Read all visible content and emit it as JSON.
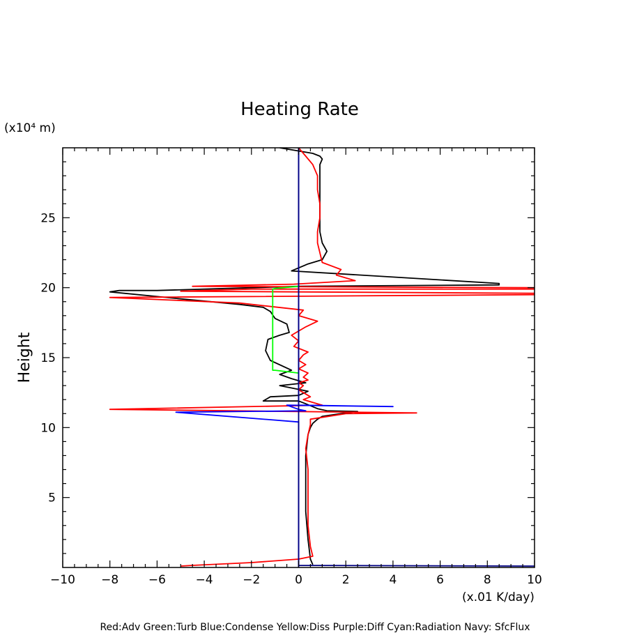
{
  "chart_data": {
    "type": "line",
    "title": "Heating Rate",
    "xlabel": "(x.01 K/day)",
    "ylabel": "Height",
    "y_unit": "(x10⁴ m)",
    "xlim": [
      -10,
      10
    ],
    "ylim": [
      0,
      30
    ],
    "xticks": [
      -10,
      -8,
      -6,
      -4,
      -2,
      0,
      2,
      4,
      6,
      8,
      10
    ],
    "yticks": [
      5,
      10,
      15,
      20,
      25
    ],
    "grid": false,
    "legend_text": "Red:Adv  Green:Turb  Blue:Condense  Yellow:Diss  Purple:Diff  Cyan:Radiation  Navy: SfcFlux",
    "series": [
      {
        "color": "#000000",
        "x": [
          0.6,
          0.5,
          0.4,
          0.3,
          0.3,
          0.3,
          0.4,
          0.5,
          0.6,
          0.8,
          1.0,
          1.8,
          2.5,
          1.2,
          0.8,
          0.3,
          0.0,
          -1.5,
          -1.2,
          0.0,
          0.4,
          -0.8,
          0.3,
          -0.3,
          -0.8,
          -0.3,
          -1.2,
          -1.4,
          -1.3,
          -0.8,
          -0.4,
          -0.5,
          -1.0,
          -1.2,
          -1.5,
          -2.5,
          -5.0,
          -8.0,
          -7.6,
          -6.0,
          -2.0,
          0.0,
          8.5,
          8.5,
          -0.3,
          0.4,
          1.0,
          1.2,
          1.0,
          0.9,
          0.9,
          0.9,
          0.9,
          0.9,
          0.9,
          0.9,
          1.0,
          0.9,
          0.6,
          -0.8
        ],
        "y": [
          0.2,
          0.6,
          2.0,
          4.0,
          6.0,
          8.0,
          9.5,
          10.0,
          10.3,
          10.6,
          10.8,
          11.0,
          11.15,
          11.2,
          11.35,
          11.7,
          11.9,
          11.9,
          12.2,
          12.3,
          12.6,
          13.0,
          13.2,
          13.5,
          13.8,
          14.1,
          14.8,
          15.5,
          16.3,
          16.6,
          16.8,
          17.4,
          17.8,
          18.3,
          18.6,
          18.8,
          19.2,
          19.7,
          19.8,
          19.8,
          20.0,
          20.1,
          20.2,
          20.3,
          21.2,
          21.7,
          22.0,
          22.6,
          23.2,
          24.0,
          25.0,
          26.0,
          27.0,
          27.8,
          28.5,
          28.8,
          29.2,
          29.4,
          29.6,
          30.0
        ]
      },
      {
        "color": "#ff0000",
        "x": [
          -5.0,
          -4.5,
          -2.0,
          0.0,
          0.6,
          0.5,
          0.4,
          0.4,
          0.4,
          0.3,
          0.4,
          0.5,
          0.5,
          2.0,
          5.0,
          -8.0,
          1.0,
          0.2,
          0.5,
          0.3,
          0.0,
          0.2,
          0.0,
          0.4,
          0.2,
          0.4,
          0.0,
          0.3,
          0.0,
          0.2,
          0.4,
          -0.2,
          0.0,
          -0.3,
          0.3,
          0.8,
          0.0,
          0.2,
          -2.5,
          -8.0,
          10.0,
          10.0,
          -5.0,
          -2.0,
          10.0,
          10.0,
          -4.5,
          -0.2,
          2.4,
          1.6,
          1.8,
          1.0,
          0.9,
          0.8,
          0.8,
          0.9,
          0.9,
          0.8,
          0.8,
          0.6,
          0.3,
          0.0
        ],
        "y": [
          0.1,
          0.15,
          0.35,
          0.6,
          0.8,
          1.5,
          3.0,
          5.0,
          7.0,
          8.5,
          9.5,
          10.2,
          10.6,
          11.0,
          11.05,
          11.3,
          11.6,
          12.0,
          12.2,
          12.4,
          12.7,
          13.0,
          13.2,
          13.4,
          13.6,
          13.9,
          14.2,
          14.5,
          14.8,
          15.2,
          15.4,
          15.8,
          16.2,
          16.6,
          17.2,
          17.6,
          18.0,
          18.4,
          18.9,
          19.3,
          19.5,
          19.6,
          19.75,
          19.9,
          19.9,
          20.0,
          20.1,
          20.25,
          20.5,
          20.9,
          21.3,
          21.8,
          22.5,
          23.2,
          24.0,
          25.0,
          26.0,
          27.0,
          28.0,
          28.8,
          29.4,
          30.0
        ]
      },
      {
        "color": "#0000ff",
        "x": [
          0.0,
          0.0,
          -5.2,
          0.3,
          0.0,
          -0.5,
          4.0,
          0.0,
          0.0
        ],
        "y": [
          0.0,
          10.4,
          11.1,
          11.2,
          11.3,
          11.6,
          11.5,
          11.6,
          30.0
        ]
      },
      {
        "color": "#00ff00",
        "x": [
          0.0,
          -1.0,
          -1.1,
          -1.1,
          -1.1,
          -1.0,
          0.0
        ],
        "y": [
          13.9,
          14.1,
          14.1,
          17.0,
          19.9,
          19.95,
          20.1
        ]
      },
      {
        "color": "#000080",
        "x": [
          0.0,
          0.0,
          0.0,
          10.0
        ],
        "y": [
          30.0,
          0.1,
          0.15,
          0.1
        ]
      }
    ]
  }
}
